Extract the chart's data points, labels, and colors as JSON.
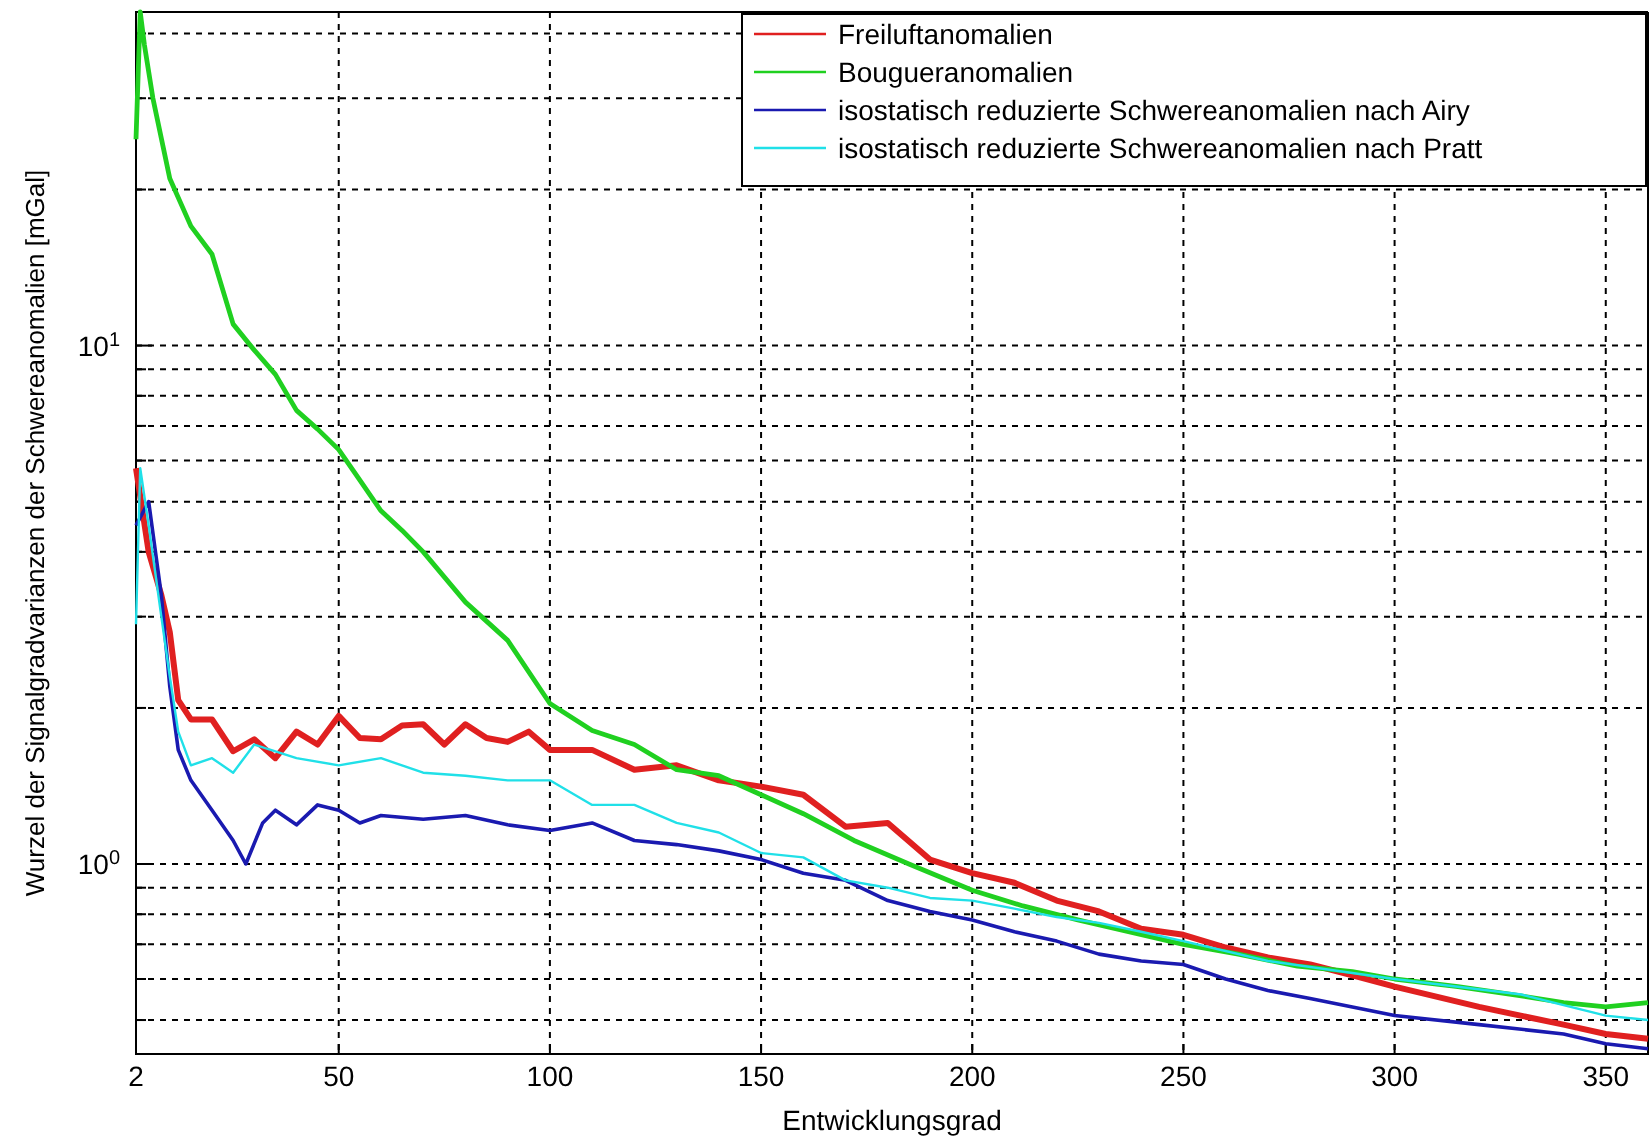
{
  "chart_data": {
    "type": "line",
    "xlabel": "Entwicklungsgrad",
    "ylabel": "Wurzel der Signalgradvarianzen der Schwereanomalien [mGal]",
    "log": "y",
    "grid": true,
    "legend": "top right",
    "line_style": "solid",
    "marker": "none",
    "xlim": [
      2,
      360
    ],
    "xticks": [
      2,
      50,
      100,
      150,
      200,
      250,
      300,
      350
    ],
    "ylim": [
      0.43,
      44
    ],
    "yticks": [
      {
        "value": 0.5,
        "label": null
      },
      {
        "value": 0.6,
        "label": null
      },
      {
        "value": 0.7,
        "label": null
      },
      {
        "value": 0.8,
        "label": null
      },
      {
        "value": 0.9,
        "label": null
      },
      {
        "value": 1,
        "label": "10$^{0}$"
      },
      {
        "value": 2,
        "label": null
      },
      {
        "value": 3,
        "label": null
      },
      {
        "value": 4,
        "label": null
      },
      {
        "value": 5,
        "label": null
      },
      {
        "value": 6,
        "label": null
      },
      {
        "value": 7,
        "label": null
      },
      {
        "value": 8,
        "label": null
      },
      {
        "value": 9,
        "label": null
      },
      {
        "value": 10,
        "label": "10$^{1}$"
      },
      {
        "value": 20,
        "label": null
      },
      {
        "value": 30,
        "label": null
      },
      {
        "value": 40,
        "label": null
      }
    ],
    "series": [
      {
        "name": "Freiluftanomalien",
        "color": "#e02020",
        "x": [
          2,
          5,
          8,
          10,
          12,
          15,
          20,
          25,
          30,
          35,
          40,
          45,
          50,
          55,
          60,
          65,
          70,
          75,
          80,
          85,
          90,
          95,
          100,
          110,
          120,
          130,
          140,
          150,
          160,
          170,
          180,
          190,
          200,
          210,
          220,
          230,
          240,
          250,
          260,
          270,
          280,
          290,
          300,
          320,
          340,
          350,
          360
        ],
        "values": [
          5.8,
          4.0,
          3.3,
          2.8,
          2.07,
          1.9,
          1.9,
          1.65,
          1.74,
          1.6,
          1.8,
          1.7,
          1.93,
          1.75,
          1.74,
          1.85,
          1.86,
          1.7,
          1.86,
          1.75,
          1.72,
          1.8,
          1.66,
          1.66,
          1.52,
          1.55,
          1.45,
          1.41,
          1.36,
          1.18,
          1.2,
          1.02,
          0.96,
          0.92,
          0.85,
          0.81,
          0.75,
          0.73,
          0.69,
          0.66,
          0.64,
          0.61,
          0.58,
          0.53,
          0.49,
          0.47,
          0.46
        ]
      },
      {
        "name": "Bougueranomalien",
        "color": "#20d020",
        "x": [
          2,
          3,
          4,
          6,
          10,
          15,
          20,
          25,
          30,
          35,
          40,
          45,
          50,
          55,
          60,
          65,
          70,
          80,
          90,
          100,
          110,
          120,
          130,
          140,
          150,
          160,
          172,
          185,
          200,
          212,
          225,
          237,
          250,
          263,
          277,
          290,
          300,
          315,
          328,
          340,
          350,
          360
        ],
        "values": [
          25,
          44,
          38,
          30,
          21,
          17,
          15,
          11,
          9.8,
          8.8,
          7.5,
          6.9,
          6.3,
          5.5,
          4.8,
          4.4,
          4.0,
          3.2,
          2.7,
          2.04,
          1.81,
          1.7,
          1.52,
          1.48,
          1.36,
          1.25,
          1.11,
          1.0,
          0.89,
          0.83,
          0.78,
          0.74,
          0.7,
          0.67,
          0.635,
          0.62,
          0.6,
          0.58,
          0.56,
          0.54,
          0.53,
          0.54
        ]
      },
      {
        "name": "isostatisch reduzierte Schwereanomalien nach Airy",
        "color": "#1a1ab0",
        "x": [
          2,
          5,
          8,
          10,
          12,
          15,
          20,
          25,
          28,
          32,
          35,
          40,
          45,
          50,
          55,
          60,
          70,
          80,
          90,
          100,
          110,
          120,
          130,
          140,
          150,
          160,
          170,
          180,
          190,
          200,
          210,
          220,
          230,
          240,
          250,
          260,
          270,
          280,
          290,
          300,
          320,
          340,
          350,
          360
        ],
        "values": [
          4.5,
          5.0,
          3.3,
          2.2,
          1.66,
          1.45,
          1.27,
          1.11,
          1.0,
          1.2,
          1.27,
          1.19,
          1.3,
          1.27,
          1.2,
          1.24,
          1.22,
          1.24,
          1.19,
          1.16,
          1.2,
          1.11,
          1.09,
          1.06,
          1.02,
          0.96,
          0.93,
          0.85,
          0.81,
          0.78,
          0.74,
          0.71,
          0.67,
          0.65,
          0.64,
          0.6,
          0.57,
          0.55,
          0.53,
          0.51,
          0.49,
          0.47,
          0.45,
          0.44
        ]
      },
      {
        "name": "isostatisch reduzierte Schwereanomalien nach Pratt",
        "color": "#20e0e8",
        "x": [
          2,
          3,
          5,
          8,
          10,
          12,
          15,
          20,
          25,
          30,
          40,
          50,
          60,
          70,
          80,
          90,
          100,
          110,
          120,
          130,
          140,
          150,
          160,
          170,
          180,
          190,
          200,
          210,
          220,
          230,
          240,
          250,
          270,
          300,
          330,
          350,
          360
        ],
        "values": [
          2.9,
          5.8,
          4.5,
          3.0,
          2.3,
          1.8,
          1.55,
          1.6,
          1.5,
          1.7,
          1.6,
          1.55,
          1.6,
          1.5,
          1.48,
          1.45,
          1.45,
          1.3,
          1.3,
          1.2,
          1.15,
          1.05,
          1.03,
          0.93,
          0.9,
          0.86,
          0.85,
          0.82,
          0.79,
          0.77,
          0.74,
          0.71,
          0.65,
          0.6,
          0.56,
          0.51,
          0.5
        ]
      }
    ]
  }
}
